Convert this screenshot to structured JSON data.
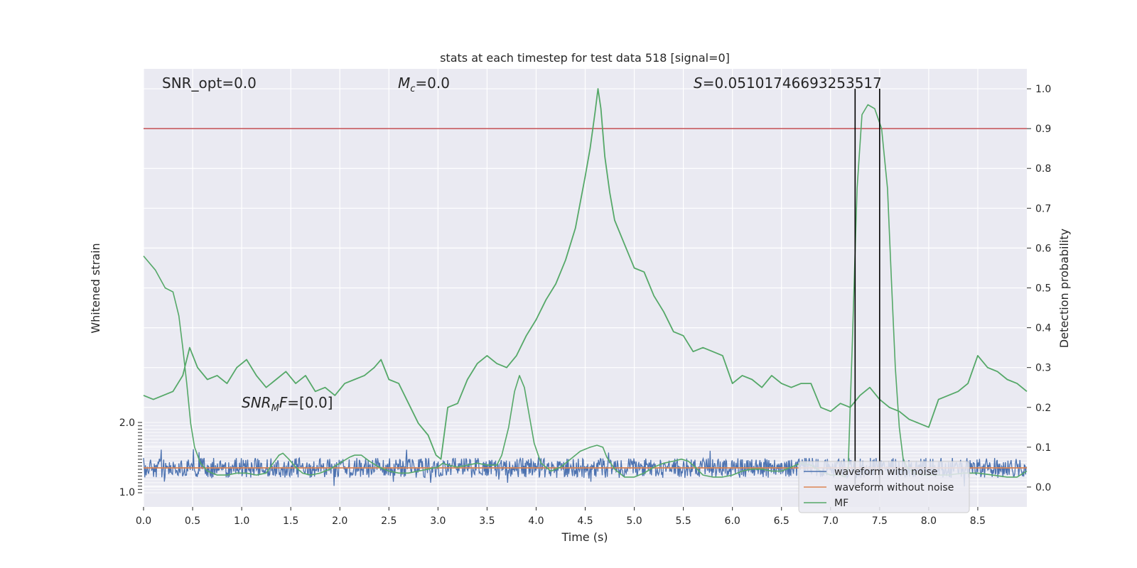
{
  "chart_data": {
    "type": "line",
    "title": "stats at each timestep for test data 518 [signal=0]",
    "xlabel": "Time (s)",
    "ylabel_left": "Whitened strain",
    "ylabel_right": "Detection probability",
    "xlim": [
      0.0,
      9.0
    ],
    "ylim_right": [
      -0.05,
      1.05
    ],
    "grid": true,
    "x_ticks": [
      "0.0",
      "0.5",
      "1.0",
      "1.5",
      "2.0",
      "2.5",
      "3.0",
      "3.5",
      "4.0",
      "4.5",
      "5.0",
      "5.5",
      "6.0",
      "6.5",
      "7.0",
      "7.5",
      "8.0",
      "8.5"
    ],
    "right_y_ticks": [
      "0.0",
      "0.1",
      "0.2",
      "0.3",
      "0.4",
      "0.5",
      "0.6",
      "0.7",
      "0.8",
      "0.9",
      "1.0"
    ],
    "inset_y_top_label": "2.0",
    "inset_y_bottom_label": "1.0",
    "threshold": 0.9,
    "window_markers": [
      7.25,
      7.5
    ],
    "annotations": {
      "snr_opt": "SNR_opt=0.0",
      "mc": "M_c=0.0",
      "s": "S=0.05101746693253517",
      "snr_mf": "SNR_MF=[0.0]"
    },
    "legend": {
      "position": "lower-right",
      "entries": [
        {
          "label": "waveform with noise",
          "color": "#4c72b0"
        },
        {
          "label": "waveform without noise",
          "color": "#dd8452"
        },
        {
          "label": "MF",
          "color": "#55a868"
        }
      ]
    },
    "series": [
      {
        "name": "MF",
        "color": "#55a868",
        "x": [
          0.0,
          0.12,
          0.22,
          0.26,
          0.3,
          0.33,
          0.36,
          0.4,
          0.44,
          0.48,
          0.52,
          0.58,
          0.65,
          0.75,
          0.85,
          0.95,
          1.05,
          1.15,
          1.25,
          1.32,
          1.38,
          1.42,
          1.48,
          1.55,
          1.62,
          1.7,
          1.8,
          1.9,
          2.0,
          2.1,
          2.15,
          2.22,
          2.3,
          2.4,
          2.5,
          2.6,
          2.7,
          2.8,
          2.9,
          3.0,
          3.05,
          3.1,
          3.2,
          3.3,
          3.4,
          3.5,
          3.6,
          3.65,
          3.72,
          3.78,
          3.83,
          3.88,
          3.93,
          3.98,
          4.05,
          4.15,
          4.25,
          4.35,
          4.45,
          4.55,
          4.62,
          4.68,
          4.72,
          4.8,
          4.9,
          5.0,
          5.1,
          5.2,
          5.3,
          5.4,
          5.48,
          5.55,
          5.62,
          5.7,
          5.8,
          5.9,
          6.0,
          6.1,
          6.2,
          6.3,
          6.4,
          6.5,
          6.6,
          6.7,
          6.8,
          6.9,
          7.0,
          7.05,
          7.1,
          7.15,
          7.18,
          7.22,
          7.27,
          7.32,
          7.38,
          7.45,
          7.52,
          7.58,
          7.62,
          7.66,
          7.7,
          7.74,
          7.78,
          7.85,
          7.95,
          8.05,
          8.2,
          8.35,
          8.5,
          8.65,
          8.8,
          8.9,
          9.0
        ],
        "y": [
          0.58,
          0.545,
          0.5,
          0.495,
          0.49,
          0.46,
          0.43,
          0.35,
          0.26,
          0.16,
          0.1,
          0.06,
          0.04,
          0.03,
          0.03,
          0.035,
          0.035,
          0.03,
          0.035,
          0.06,
          0.08,
          0.085,
          0.07,
          0.05,
          0.035,
          0.03,
          0.035,
          0.045,
          0.06,
          0.075,
          0.08,
          0.08,
          0.065,
          0.05,
          0.04,
          0.035,
          0.035,
          0.04,
          0.045,
          0.05,
          0.06,
          0.055,
          0.05,
          0.055,
          0.06,
          0.055,
          0.055,
          0.08,
          0.15,
          0.24,
          0.28,
          0.25,
          0.18,
          0.11,
          0.06,
          0.04,
          0.05,
          0.07,
          0.09,
          0.1,
          0.105,
          0.1,
          0.075,
          0.045,
          0.025,
          0.025,
          0.035,
          0.05,
          0.06,
          0.065,
          0.07,
          0.065,
          0.05,
          0.03,
          0.025,
          0.025,
          0.03,
          0.04,
          0.045,
          0.045,
          0.04,
          0.04,
          0.05,
          0.06,
          0.055,
          0.04,
          0.03,
          0.03,
          0.03,
          0.025,
          0.05,
          0.35,
          0.75,
          0.935,
          0.96,
          0.95,
          0.9,
          0.75,
          0.52,
          0.3,
          0.15,
          0.07,
          0.05,
          0.035,
          0.03,
          0.03,
          0.03,
          0.035,
          0.035,
          0.03,
          0.025,
          0.025,
          0.04
        ]
      },
      {
        "name": "Detection probability",
        "color": "#55a868",
        "x": [
          0.0,
          0.1,
          0.2,
          0.3,
          0.4,
          0.47,
          0.55,
          0.65,
          0.75,
          0.85,
          0.95,
          1.05,
          1.15,
          1.25,
          1.35,
          1.45,
          1.55,
          1.65,
          1.75,
          1.85,
          1.95,
          2.05,
          2.15,
          2.25,
          2.35,
          2.42,
          2.5,
          2.6,
          2.7,
          2.8,
          2.9,
          2.98,
          3.03,
          3.1,
          3.2,
          3.3,
          3.4,
          3.5,
          3.6,
          3.7,
          3.8,
          3.9,
          4.0,
          4.1,
          4.2,
          4.3,
          4.4,
          4.5,
          4.55,
          4.6,
          4.63,
          4.66,
          4.7,
          4.75,
          4.8,
          4.9,
          5.0,
          5.1,
          5.2,
          5.3,
          5.4,
          5.5,
          5.6,
          5.7,
          5.8,
          5.9,
          6.0,
          6.1,
          6.2,
          6.3,
          6.4,
          6.5,
          6.6,
          6.7,
          6.8,
          6.9,
          7.0,
          7.1,
          7.2,
          7.3,
          7.4,
          7.5,
          7.6,
          7.7,
          7.8,
          7.9,
          8.0,
          8.1,
          8.2,
          8.3,
          8.4,
          8.5,
          8.6,
          8.7,
          8.8,
          8.9,
          9.0
        ],
        "y": [
          0.23,
          0.22,
          0.23,
          0.24,
          0.28,
          0.35,
          0.3,
          0.27,
          0.28,
          0.26,
          0.3,
          0.32,
          0.28,
          0.25,
          0.27,
          0.29,
          0.26,
          0.28,
          0.24,
          0.25,
          0.23,
          0.26,
          0.27,
          0.28,
          0.3,
          0.32,
          0.27,
          0.26,
          0.21,
          0.16,
          0.13,
          0.08,
          0.07,
          0.2,
          0.21,
          0.27,
          0.31,
          0.33,
          0.31,
          0.3,
          0.33,
          0.38,
          0.42,
          0.47,
          0.51,
          0.57,
          0.65,
          0.78,
          0.85,
          0.94,
          1.0,
          0.95,
          0.83,
          0.74,
          0.67,
          0.61,
          0.55,
          0.54,
          0.48,
          0.44,
          0.39,
          0.38,
          0.34,
          0.35,
          0.34,
          0.33,
          0.26,
          0.28,
          0.27,
          0.25,
          0.28,
          0.26,
          0.25,
          0.26,
          0.26,
          0.2,
          0.19,
          0.21,
          0.2,
          0.23,
          0.25,
          0.22,
          0.2,
          0.19,
          0.17,
          0.16,
          0.15,
          0.22,
          0.23,
          0.24,
          0.26,
          0.33,
          0.3,
          0.29,
          0.27,
          0.26,
          0.24
        ]
      }
    ]
  }
}
